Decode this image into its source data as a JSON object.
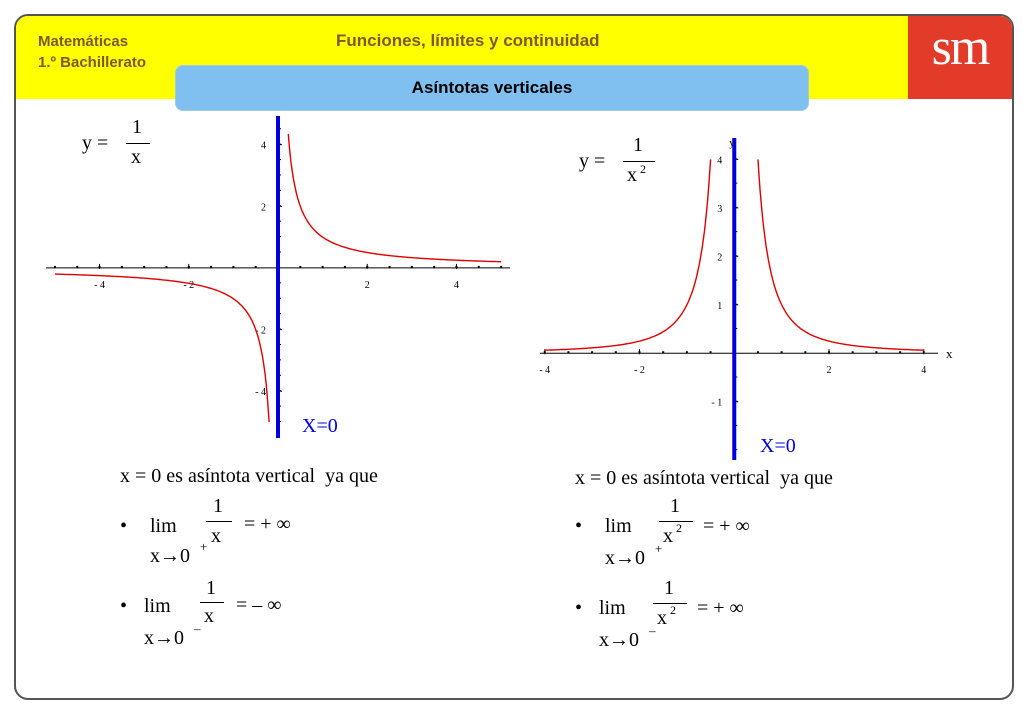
{
  "header": {
    "subject": "Matemáticas",
    "course": "1.º Bachillerato",
    "title": "Funciones, límites y continuidad",
    "section": "Asíntotas verticales",
    "logo": "sm"
  },
  "colors": {
    "header_bg": "#ffff00",
    "section_bg": "#7fc0f0",
    "logo_bg": "#e23b2a",
    "curve": "#dd0000",
    "asymptote": "#0000dd"
  },
  "chart_data": [
    {
      "type": "line",
      "function": "1/x",
      "formula_label": {
        "lhs": "y =",
        "num": "1",
        "den": "x"
      },
      "x_ticks": [
        -4,
        -2,
        2,
        4
      ],
      "x_tick_labels": [
        "- 4",
        "- 2",
        "2",
        "4"
      ],
      "y_ticks": [
        -4,
        -2,
        2,
        4
      ],
      "y_tick_labels": [
        "- 4",
        "- 2",
        "2",
        "4"
      ],
      "xlim": [
        -5.2,
        5.2
      ],
      "ylim": [
        -5.0,
        4.8
      ],
      "asymptote_label": "X=0"
    },
    {
      "type": "line",
      "function": "1/x^2",
      "formula_label": {
        "lhs": "y =",
        "num": "1",
        "den": "x",
        "exp": "2"
      },
      "x_ticks": [
        -4,
        -2,
        2,
        4
      ],
      "x_tick_labels": [
        "- 4",
        "- 2",
        "2",
        "4"
      ],
      "y_ticks": [
        -1,
        1,
        2,
        3,
        4
      ],
      "y_tick_labels": [
        "- 1",
        "1",
        "2",
        "3",
        "4"
      ],
      "xlim": [
        -4.1,
        4.3
      ],
      "ylim": [
        -2.1,
        4.4
      ],
      "x_axis_name": "x",
      "y_axis_name": "y",
      "asymptote_label": "X=0"
    }
  ],
  "left_text": {
    "statement": "x = 0 es asíntota vertical  ya que",
    "limits": [
      {
        "bullet": "•",
        "lim": "lim",
        "num": "1",
        "den": "x",
        "den_exp": "",
        "result": "= + ∞",
        "under": "x→0",
        "side": "+"
      },
      {
        "bullet": "•",
        "lim": "lim",
        "num": "1",
        "den": "x",
        "den_exp": "",
        "result": "= – ∞",
        "under": "x→0",
        "side": "–"
      }
    ]
  },
  "right_text": {
    "statement": "x = 0 es asíntota vertical  ya que",
    "limits": [
      {
        "bullet": "•",
        "lim": "lim",
        "num": "1",
        "den": "x",
        "den_exp": "2",
        "result": "= + ∞",
        "under": "x→0",
        "side": "+"
      },
      {
        "bullet": "•",
        "lim": "lim",
        "num": "1",
        "den": "x",
        "den_exp": "2",
        "result": "= + ∞",
        "under": "x→0",
        "side": "–"
      }
    ]
  }
}
